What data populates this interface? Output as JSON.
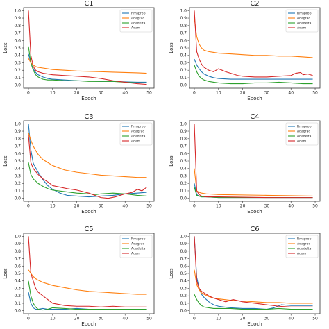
{
  "colors": {
    "Rmsprop": "#1f77b4",
    "Adagrad": "#ff7f0e",
    "Adadelta": "#2ca02c",
    "Adam": "#d62728"
  },
  "chart_data": [
    {
      "type": "line",
      "title": "C1",
      "xlabel": "Epoch",
      "ylabel": "Loss",
      "xlim": [
        0,
        50
      ],
      "ylim": [
        0,
        1.0
      ],
      "x_ticks": [
        "0",
        "10",
        "20",
        "30",
        "40",
        "50"
      ],
      "y_ticks": [
        "0.0",
        "0.1",
        "0.2",
        "0.3",
        "0.4",
        "0.5",
        "0.6",
        "0.7",
        "0.8",
        "0.9",
        "1.0"
      ],
      "legend_position": "top-right",
      "series": [
        {
          "name": "Rmsprop",
          "x": [
            0,
            1,
            2,
            3,
            4,
            6,
            8,
            10,
            15,
            20,
            25,
            30,
            35,
            40,
            45,
            49
          ],
          "values": [
            0.42,
            0.3,
            0.22,
            0.17,
            0.14,
            0.11,
            0.09,
            0.08,
            0.07,
            0.06,
            0.055,
            0.05,
            0.05,
            0.045,
            0.04,
            0.04
          ]
        },
        {
          "name": "Adagrad",
          "x": [
            0,
            1,
            2,
            3,
            4,
            6,
            8,
            10,
            15,
            20,
            25,
            30,
            35,
            40,
            45,
            49
          ],
          "values": [
            0.36,
            0.3,
            0.27,
            0.25,
            0.24,
            0.23,
            0.22,
            0.21,
            0.2,
            0.19,
            0.185,
            0.18,
            0.175,
            0.17,
            0.165,
            0.16
          ]
        },
        {
          "name": "Adadelta",
          "x": [
            0,
            1,
            2,
            3,
            4,
            6,
            8,
            10,
            15,
            20,
            25,
            30,
            35,
            40,
            45,
            49
          ],
          "values": [
            0.52,
            0.3,
            0.2,
            0.14,
            0.11,
            0.08,
            0.07,
            0.07,
            0.06,
            0.06,
            0.05,
            0.05,
            0.05,
            0.04,
            0.03,
            0.03
          ]
        },
        {
          "name": "Adam",
          "x": [
            0,
            1,
            2,
            3,
            4,
            6,
            8,
            10,
            15,
            20,
            25,
            30,
            35,
            40,
            45,
            49
          ],
          "values": [
            1.0,
            0.4,
            0.25,
            0.2,
            0.18,
            0.16,
            0.15,
            0.14,
            0.13,
            0.12,
            0.11,
            0.09,
            0.06,
            0.04,
            0.02,
            0.01
          ]
        }
      ]
    },
    {
      "type": "line",
      "title": "C2",
      "xlabel": "Epoch",
      "ylabel": "Loss",
      "xlim": [
        0,
        50
      ],
      "ylim": [
        0,
        1.0
      ],
      "x_ticks": [
        "0",
        "10",
        "20",
        "30",
        "40",
        "50"
      ],
      "y_ticks": [
        "0.0",
        "0.1",
        "0.2",
        "0.3",
        "0.4",
        "0.5",
        "0.6",
        "0.7",
        "0.8",
        "0.9",
        "1.0"
      ],
      "legend_position": "top-right",
      "series": [
        {
          "name": "Rmsprop",
          "x": [
            0,
            1,
            2,
            3,
            4,
            6,
            8,
            10,
            15,
            20,
            25,
            30,
            35,
            40,
            45,
            49
          ],
          "values": [
            0.35,
            0.27,
            0.22,
            0.18,
            0.15,
            0.12,
            0.1,
            0.09,
            0.08,
            0.08,
            0.08,
            0.08,
            0.08,
            0.08,
            0.08,
            0.08
          ]
        },
        {
          "name": "Adagrad",
          "x": [
            0,
            1,
            2,
            3,
            4,
            6,
            8,
            10,
            15,
            20,
            25,
            30,
            35,
            40,
            45,
            49
          ],
          "values": [
            0.9,
            0.65,
            0.55,
            0.5,
            0.47,
            0.45,
            0.44,
            0.43,
            0.42,
            0.41,
            0.4,
            0.4,
            0.39,
            0.39,
            0.38,
            0.37
          ]
        },
        {
          "name": "Adadelta",
          "x": [
            0,
            1,
            2,
            3,
            4,
            6,
            8,
            10,
            15,
            20,
            25,
            30,
            35,
            40,
            45,
            49
          ],
          "values": [
            0.27,
            0.18,
            0.12,
            0.09,
            0.07,
            0.05,
            0.04,
            0.03,
            0.02,
            0.02,
            0.03,
            0.03,
            0.04,
            0.03,
            0.02,
            0.02
          ]
        },
        {
          "name": "Adam",
          "x": [
            0,
            1,
            2,
            3,
            4,
            6,
            8,
            10,
            13,
            15,
            18,
            20,
            25,
            30,
            35,
            40,
            42,
            44,
            45,
            47,
            49
          ],
          "values": [
            1.0,
            0.45,
            0.35,
            0.28,
            0.24,
            0.2,
            0.18,
            0.22,
            0.18,
            0.16,
            0.13,
            0.12,
            0.11,
            0.11,
            0.12,
            0.13,
            0.16,
            0.17,
            0.14,
            0.15,
            0.13
          ]
        }
      ]
    },
    {
      "type": "line",
      "title": "C3",
      "xlabel": "Epoch",
      "ylabel": "Loss",
      "xlim": [
        0,
        50
      ],
      "ylim": [
        0,
        1.0
      ],
      "x_ticks": [
        "0",
        "10",
        "20",
        "30",
        "40",
        "50"
      ],
      "y_ticks": [
        "0.0",
        "0.1",
        "0.2",
        "0.3",
        "0.4",
        "0.5",
        "0.6",
        "0.7",
        "0.8",
        "0.9",
        "1.0"
      ],
      "legend_position": "top-right",
      "series": [
        {
          "name": "Rmsprop",
          "x": [
            0,
            1,
            2,
            4,
            6,
            8,
            10,
            13,
            16,
            20,
            25,
            30,
            35,
            40,
            45,
            49
          ],
          "values": [
            1.0,
            0.65,
            0.47,
            0.35,
            0.25,
            0.17,
            0.12,
            0.07,
            0.04,
            0.03,
            0.02,
            0.03,
            0.04,
            0.06,
            0.07,
            0.08
          ]
        },
        {
          "name": "Adagrad",
          "x": [
            0,
            1,
            2,
            3,
            4,
            6,
            8,
            10,
            15,
            20,
            25,
            30,
            35,
            40,
            45,
            49
          ],
          "values": [
            0.88,
            0.78,
            0.7,
            0.64,
            0.59,
            0.52,
            0.48,
            0.44,
            0.38,
            0.35,
            0.33,
            0.31,
            0.3,
            0.29,
            0.28,
            0.28
          ]
        },
        {
          "name": "Adadelta",
          "x": [
            0,
            1,
            2,
            4,
            6,
            8,
            10,
            15,
            20,
            25,
            28,
            30,
            35,
            40,
            45,
            49
          ],
          "values": [
            0.48,
            0.32,
            0.26,
            0.2,
            0.16,
            0.13,
            0.11,
            0.09,
            0.07,
            0.06,
            0.05,
            0.06,
            0.07,
            0.06,
            0.04,
            0.03
          ]
        },
        {
          "name": "Adam",
          "x": [
            0,
            1,
            2,
            4,
            6,
            8,
            10,
            13,
            16,
            20,
            25,
            30,
            33,
            36,
            40,
            43,
            45,
            47,
            49
          ],
          "values": [
            0.85,
            0.48,
            0.4,
            0.32,
            0.26,
            0.22,
            0.17,
            0.15,
            0.13,
            0.11,
            0.07,
            0.01,
            0.0,
            0.02,
            0.06,
            0.08,
            0.12,
            0.1,
            0.15
          ]
        }
      ]
    },
    {
      "type": "line",
      "title": "C4",
      "xlabel": "Epoch",
      "ylabel": "Loss",
      "xlim": [
        0,
        50
      ],
      "ylim": [
        0,
        1.0
      ],
      "x_ticks": [
        "0",
        "10",
        "20",
        "30",
        "40",
        "50"
      ],
      "y_ticks": [
        "0.0",
        "0.1",
        "0.2",
        "0.3",
        "0.4",
        "0.5",
        "0.6",
        "0.7",
        "0.8",
        "0.9",
        "1.0"
      ],
      "legend_position": "top-right",
      "series": [
        {
          "name": "Rmsprop",
          "x": [
            0,
            1,
            2,
            3,
            5,
            10,
            20,
            30,
            40,
            49
          ],
          "values": [
            0.2,
            0.05,
            0.03,
            0.02,
            0.02,
            0.01,
            0.01,
            0.01,
            0.01,
            0.01
          ]
        },
        {
          "name": "Adagrad",
          "x": [
            0,
            1,
            2,
            3,
            5,
            10,
            20,
            30,
            40,
            49
          ],
          "values": [
            0.4,
            0.1,
            0.08,
            0.07,
            0.06,
            0.05,
            0.045,
            0.04,
            0.035,
            0.03
          ]
        },
        {
          "name": "Adadelta",
          "x": [
            0,
            1,
            2,
            3,
            5,
            10,
            20,
            30,
            40,
            49
          ],
          "values": [
            0.15,
            0.04,
            0.03,
            0.02,
            0.02,
            0.01,
            0.01,
            0.01,
            0.01,
            0.01
          ]
        },
        {
          "name": "Adam",
          "x": [
            0,
            1,
            2,
            3,
            5,
            10,
            20,
            30,
            40,
            49
          ],
          "values": [
            1.0,
            0.1,
            0.05,
            0.03,
            0.02,
            0.02,
            0.015,
            0.01,
            0.01,
            0.01
          ]
        }
      ]
    },
    {
      "type": "line",
      "title": "C5",
      "xlabel": "Epoch",
      "ylabel": "Loss",
      "xlim": [
        0,
        50
      ],
      "ylim": [
        0,
        1.0
      ],
      "x_ticks": [
        "0",
        "10",
        "20",
        "30",
        "40",
        "50"
      ],
      "y_ticks": [
        "0.0",
        "0.1",
        "0.2",
        "0.3",
        "0.4",
        "0.5",
        "0.6",
        "0.7",
        "0.8",
        "0.9",
        "1.0"
      ],
      "legend_position": "top-right",
      "series": [
        {
          "name": "Rmsprop",
          "x": [
            0,
            1,
            2,
            3,
            4,
            6,
            8,
            10,
            15,
            20,
            25,
            30,
            35,
            40,
            45,
            49
          ],
          "values": [
            0.25,
            0.1,
            0.04,
            0.02,
            0.02,
            0.03,
            0.02,
            0.02,
            0.02,
            0.03,
            0.02,
            0.02,
            0.02,
            0.02,
            0.02,
            0.02
          ]
        },
        {
          "name": "Adagrad",
          "x": [
            0,
            1,
            2,
            3,
            4,
            6,
            8,
            10,
            15,
            20,
            25,
            30,
            35,
            40,
            45,
            49
          ],
          "values": [
            0.55,
            0.5,
            0.46,
            0.43,
            0.41,
            0.38,
            0.36,
            0.34,
            0.31,
            0.28,
            0.26,
            0.25,
            0.24,
            0.23,
            0.22,
            0.22
          ]
        },
        {
          "name": "Adadelta",
          "x": [
            0,
            1,
            2,
            3,
            4,
            6,
            8,
            10,
            15,
            20,
            25,
            30,
            35,
            40,
            45,
            49
          ],
          "values": [
            0.4,
            0.2,
            0.1,
            0.05,
            0.02,
            0.01,
            0.02,
            0.04,
            0.03,
            0.02,
            0.02,
            0.02,
            0.02,
            0.02,
            0.02,
            0.02
          ]
        },
        {
          "name": "Adam",
          "x": [
            0,
            1,
            2,
            3,
            4,
            6,
            8,
            10,
            15,
            20,
            25,
            30,
            35,
            40,
            45,
            49
          ],
          "values": [
            1.0,
            0.5,
            0.4,
            0.3,
            0.25,
            0.2,
            0.15,
            0.1,
            0.07,
            0.06,
            0.06,
            0.05,
            0.06,
            0.05,
            0.05,
            0.05
          ]
        }
      ]
    },
    {
      "type": "line",
      "title": "C6",
      "xlabel": "Epoch",
      "ylabel": "Loss",
      "xlim": [
        0,
        50
      ],
      "ylim": [
        0,
        1.0
      ],
      "x_ticks": [
        "0",
        "10",
        "20",
        "30",
        "40",
        "50"
      ],
      "y_ticks": [
        "0.0",
        "0.1",
        "0.2",
        "0.3",
        "0.4",
        "0.5",
        "0.6",
        "0.7",
        "0.8",
        "0.9",
        "1.0"
      ],
      "legend_position": "top-right",
      "series": [
        {
          "name": "Rmsprop",
          "x": [
            0,
            1,
            2,
            3,
            4,
            6,
            8,
            10,
            15,
            20,
            25,
            30,
            33,
            36,
            40,
            45,
            49
          ],
          "values": [
            1.0,
            0.45,
            0.3,
            0.22,
            0.18,
            0.12,
            0.08,
            0.06,
            0.04,
            0.03,
            0.03,
            0.02,
            0.04,
            0.08,
            0.07,
            0.07,
            0.07
          ]
        },
        {
          "name": "Adagrad",
          "x": [
            0,
            1,
            2,
            3,
            4,
            6,
            8,
            10,
            15,
            20,
            25,
            30,
            35,
            40,
            45,
            49
          ],
          "values": [
            0.55,
            0.35,
            0.28,
            0.24,
            0.22,
            0.19,
            0.17,
            0.16,
            0.14,
            0.13,
            0.12,
            0.11,
            0.11,
            0.1,
            0.1,
            0.1
          ]
        },
        {
          "name": "Adadelta",
          "x": [
            0,
            1,
            2,
            3,
            4,
            6,
            8,
            10,
            15,
            20,
            25,
            30,
            35,
            40,
            45,
            49
          ],
          "values": [
            0.22,
            0.15,
            0.1,
            0.07,
            0.05,
            0.04,
            0.03,
            0.03,
            0.03,
            0.02,
            0.02,
            0.02,
            0.03,
            0.02,
            0.02,
            0.02
          ]
        },
        {
          "name": "Adam",
          "x": [
            0,
            1,
            2,
            3,
            4,
            6,
            8,
            10,
            13,
            16,
            20,
            25,
            30,
            35,
            40,
            45,
            49
          ],
          "values": [
            1.0,
            0.4,
            0.3,
            0.26,
            0.24,
            0.2,
            0.17,
            0.15,
            0.12,
            0.15,
            0.12,
            0.1,
            0.08,
            0.06,
            0.05,
            0.05,
            0.05
          ]
        }
      ]
    }
  ]
}
